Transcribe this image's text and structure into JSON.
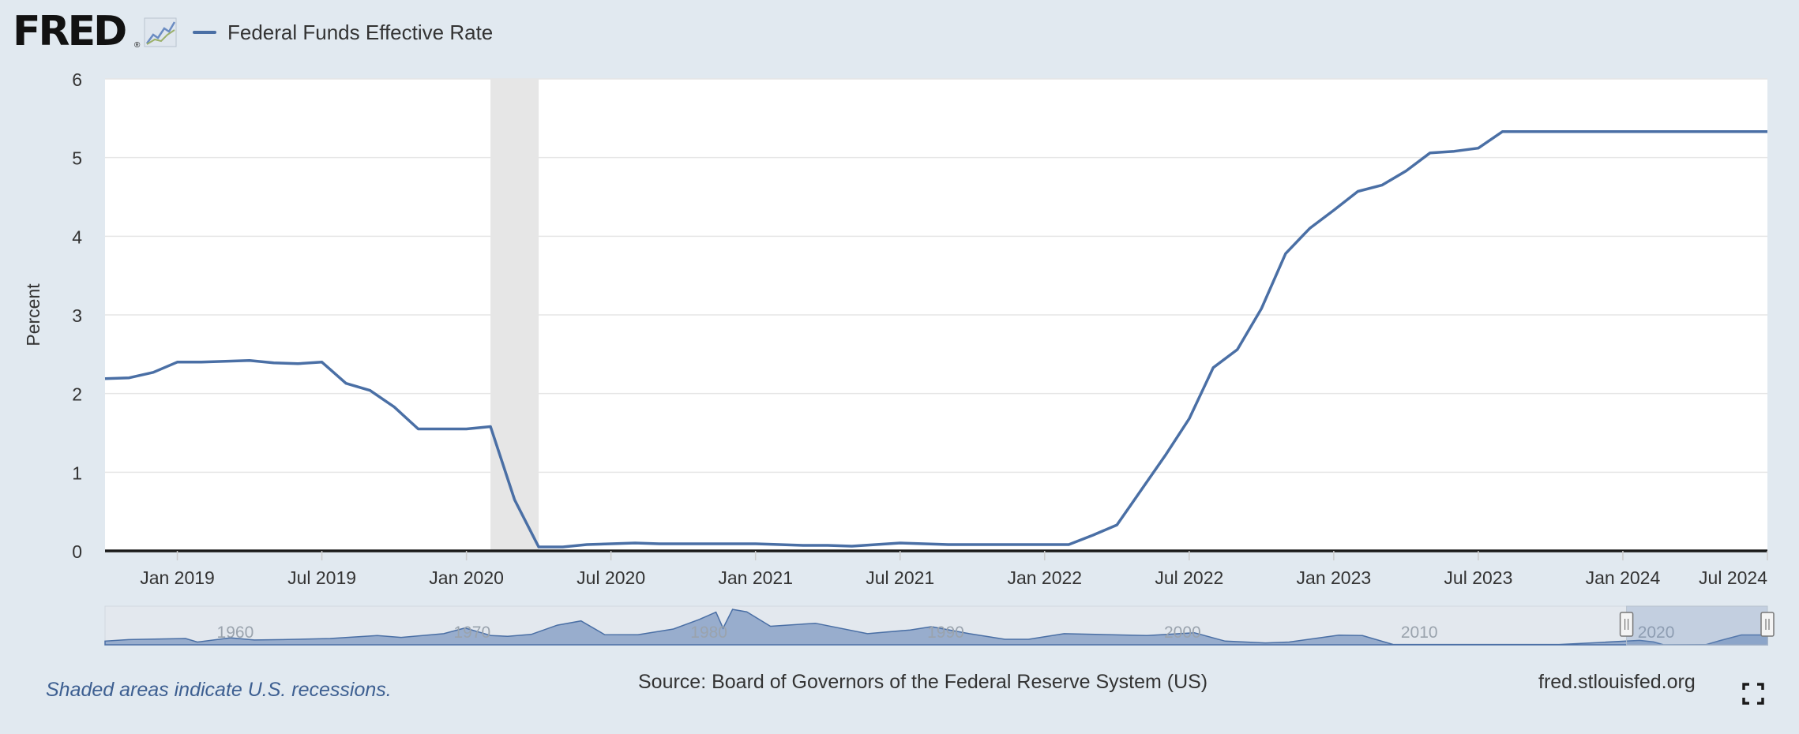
{
  "header": {
    "logo_text": "FRED",
    "logo_reg": "®",
    "legend_label": "Federal Funds Effective Rate"
  },
  "colors": {
    "series": "#4a6fa5",
    "background": "#e1e9f0",
    "plot": "#ffffff",
    "recession": "#e6e6e6",
    "navigator_fill": "#8fa6c9"
  },
  "footer": {
    "note": "Shaded areas indicate U.S. recessions.",
    "source": "Source: Board of Governors of the Federal Reserve System (US)",
    "site": "fred.stlouisfed.org"
  },
  "icons": {
    "logo_graph": "line-graph-icon",
    "fullscreen": "fullscreen-icon"
  },
  "chart_data": {
    "type": "line",
    "ylabel": "Percent",
    "ylim": [
      0,
      6
    ],
    "yticks": [
      0,
      1,
      2,
      3,
      4,
      5,
      6
    ],
    "xlim": [
      "2018-10",
      "2024-07"
    ],
    "xticks": [
      {
        "date": "2019-01",
        "label": "Jan 2019"
      },
      {
        "date": "2019-07",
        "label": "Jul 2019"
      },
      {
        "date": "2020-01",
        "label": "Jan 2020"
      },
      {
        "date": "2020-07",
        "label": "Jul 2020"
      },
      {
        "date": "2021-01",
        "label": "Jan 2021"
      },
      {
        "date": "2021-07",
        "label": "Jul 2021"
      },
      {
        "date": "2022-01",
        "label": "Jan 2022"
      },
      {
        "date": "2022-07",
        "label": "Jul 2022"
      },
      {
        "date": "2023-01",
        "label": "Jan 2023"
      },
      {
        "date": "2023-07",
        "label": "Jul 2023"
      },
      {
        "date": "2024-01",
        "label": "Jan 2024"
      },
      {
        "date": "2024-07",
        "label": "Jul 2024"
      }
    ],
    "grid": true,
    "recessions": [
      {
        "start": "2020-02",
        "end": "2020-04"
      }
    ],
    "series": [
      {
        "name": "Federal Funds Effective Rate",
        "x": [
          "2018-10",
          "2018-11",
          "2018-12",
          "2019-01",
          "2019-02",
          "2019-03",
          "2019-04",
          "2019-05",
          "2019-06",
          "2019-07",
          "2019-08",
          "2019-09",
          "2019-10",
          "2019-11",
          "2019-12",
          "2020-01",
          "2020-02",
          "2020-03",
          "2020-04",
          "2020-05",
          "2020-06",
          "2020-07",
          "2020-08",
          "2020-09",
          "2020-10",
          "2020-11",
          "2020-12",
          "2021-01",
          "2021-02",
          "2021-03",
          "2021-04",
          "2021-05",
          "2021-06",
          "2021-07",
          "2021-08",
          "2021-09",
          "2021-10",
          "2021-11",
          "2021-12",
          "2022-01",
          "2022-02",
          "2022-03",
          "2022-04",
          "2022-05",
          "2022-06",
          "2022-07",
          "2022-08",
          "2022-09",
          "2022-10",
          "2022-11",
          "2022-12",
          "2023-01",
          "2023-02",
          "2023-03",
          "2023-04",
          "2023-05",
          "2023-06",
          "2023-07",
          "2023-08",
          "2023-09",
          "2023-10",
          "2023-11",
          "2023-12",
          "2024-01",
          "2024-02",
          "2024-03",
          "2024-04",
          "2024-05",
          "2024-06",
          "2024-07"
        ],
        "y": [
          2.19,
          2.2,
          2.27,
          2.4,
          2.4,
          2.41,
          2.42,
          2.39,
          2.38,
          2.4,
          2.13,
          2.04,
          1.83,
          1.55,
          1.55,
          1.55,
          1.58,
          0.65,
          0.05,
          0.05,
          0.08,
          0.09,
          0.1,
          0.09,
          0.09,
          0.09,
          0.09,
          0.09,
          0.08,
          0.07,
          0.07,
          0.06,
          0.08,
          0.1,
          0.09,
          0.08,
          0.08,
          0.08,
          0.08,
          0.08,
          0.08,
          0.2,
          0.33,
          0.77,
          1.21,
          1.68,
          2.33,
          2.56,
          3.08,
          3.78,
          4.1,
          4.33,
          4.57,
          4.65,
          4.83,
          5.06,
          5.08,
          5.12,
          5.33,
          5.33,
          5.33,
          5.33,
          5.33,
          5.33,
          5.33,
          5.33,
          5.33,
          5.33,
          5.33,
          5.33
        ]
      }
    ],
    "navigator": {
      "labels": [
        "1960",
        "1970",
        "1980",
        "1990",
        "2000",
        "2010",
        "2020"
      ]
    }
  }
}
